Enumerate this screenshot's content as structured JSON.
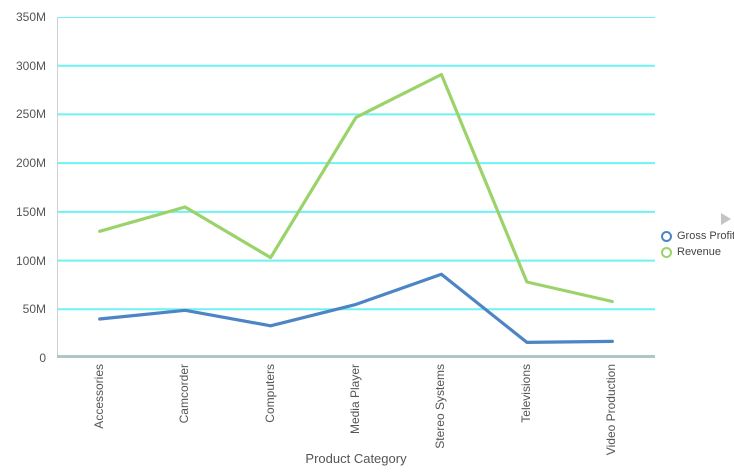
{
  "chart_data": {
    "type": "line",
    "categories": [
      "Accessories",
      "Camcorder",
      "Computers",
      "Media Player",
      "Stereo Systems",
      "Televisions",
      "Video Production"
    ],
    "series": [
      {
        "name": "Gross Profit",
        "color": "#4d85c4",
        "values": [
          40,
          49,
          33,
          55,
          86,
          16,
          17
        ]
      },
      {
        "name": "Revenue",
        "color": "#9bd36a",
        "values": [
          130,
          155,
          103,
          247,
          291,
          78,
          58
        ]
      }
    ],
    "title": "",
    "xlabel": "Product Category",
    "ylabel": "",
    "ylim": [
      0,
      350
    ],
    "ytick_step": 50,
    "ytick_labels": [
      "0",
      "50M",
      "100M",
      "150M",
      "200M",
      "250M",
      "300M",
      "350M"
    ],
    "grid": true,
    "legend_position": "right"
  },
  "legend": {
    "items": [
      {
        "label": "Gross Profit",
        "color": "#4d85c4"
      },
      {
        "label": "Revenue",
        "color": "#9bd36a"
      }
    ],
    "scroll_arrow_glyph": "▶"
  },
  "colors": {
    "gridline": "#6ff2f2",
    "baseline": "#abc8c4",
    "axis_line": "#cfcfcf",
    "axis_text": "#555555",
    "legend_text": "#444444",
    "legend_arrow": "#c4c4c4",
    "background": "#ffffff"
  }
}
